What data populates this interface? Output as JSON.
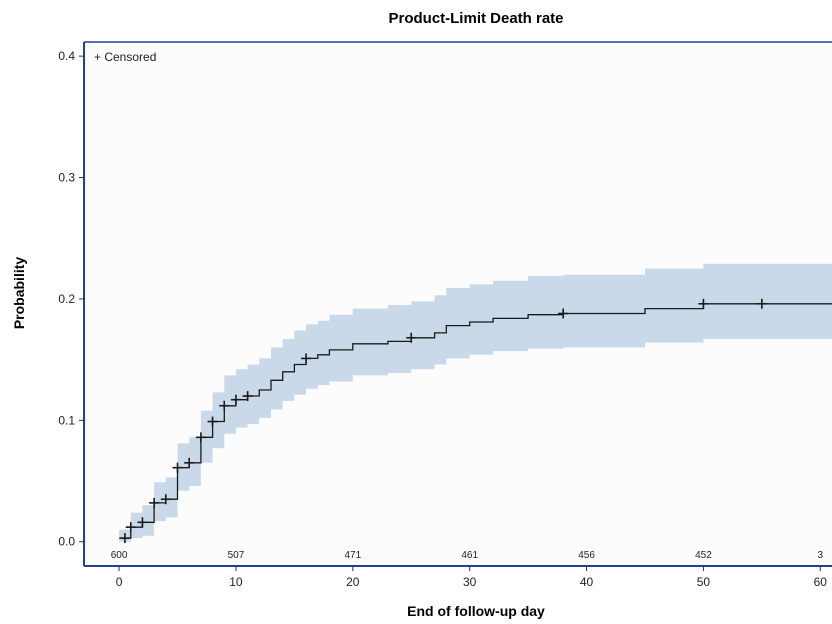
{
  "chart_data": {
    "type": "line",
    "title": "Product-Limit Death rate",
    "xlabel": "End of follow-up day",
    "ylabel": "Probability",
    "xlim": [
      -3,
      61
    ],
    "ylim": [
      -0.02,
      0.41
    ],
    "xticks": [
      0,
      10,
      20,
      30,
      40,
      50,
      60
    ],
    "xtick_labels": [
      "0",
      "10",
      "20",
      "30",
      "40",
      "50",
      "60"
    ],
    "yticks": [
      0.0,
      0.1,
      0.2,
      0.3,
      0.4
    ],
    "ytick_labels": [
      "0.0",
      "0.1",
      "0.2",
      "0.3",
      "0.4"
    ],
    "legend": {
      "label": "+ Censored",
      "placement": "top-left"
    },
    "grid": false,
    "colors": {
      "line": "#1a1a1a",
      "band": "#c9d9ea",
      "axis": "#1f3f99"
    },
    "series": [
      {
        "type": "step",
        "x": [
          0,
          1,
          2,
          3,
          4,
          5,
          6,
          7,
          8,
          9,
          10,
          11,
          12,
          13,
          14,
          15,
          16,
          17,
          18,
          20,
          23,
          25,
          27,
          28,
          30,
          32,
          35,
          38,
          45,
          50,
          61
        ],
        "y": [
          0.003,
          0.012,
          0.016,
          0.032,
          0.035,
          0.061,
          0.065,
          0.086,
          0.099,
          0.112,
          0.117,
          0.12,
          0.125,
          0.133,
          0.14,
          0.146,
          0.151,
          0.154,
          0.158,
          0.163,
          0.165,
          0.168,
          0.172,
          0.178,
          0.181,
          0.184,
          0.187,
          0.188,
          0.192,
          0.196,
          0.196
        ]
      },
      {
        "name": "Confidence band",
        "type": "band",
        "x": [
          0,
          1,
          2,
          3,
          4,
          5,
          6,
          7,
          8,
          9,
          10,
          11,
          12,
          13,
          14,
          15,
          16,
          17,
          18,
          20,
          23,
          25,
          27,
          28,
          30,
          32,
          35,
          38,
          45,
          50,
          61
        ],
        "lower": [
          0.0,
          0.003,
          0.005,
          0.017,
          0.02,
          0.042,
          0.046,
          0.065,
          0.077,
          0.089,
          0.094,
          0.097,
          0.102,
          0.109,
          0.116,
          0.121,
          0.126,
          0.129,
          0.132,
          0.137,
          0.139,
          0.142,
          0.146,
          0.151,
          0.154,
          0.157,
          0.159,
          0.16,
          0.164,
          0.167,
          0.167
        ],
        "upper": [
          0.01,
          0.024,
          0.03,
          0.049,
          0.053,
          0.081,
          0.086,
          0.108,
          0.123,
          0.137,
          0.142,
          0.146,
          0.151,
          0.16,
          0.167,
          0.174,
          0.179,
          0.182,
          0.187,
          0.192,
          0.195,
          0.198,
          0.203,
          0.209,
          0.212,
          0.215,
          0.219,
          0.22,
          0.225,
          0.229,
          0.229
        ]
      },
      {
        "name": "Censored",
        "type": "censor",
        "x": [
          0.5,
          1,
          2,
          3,
          4,
          5,
          6,
          7,
          8,
          9,
          10,
          11,
          16,
          25,
          38,
          50,
          55
        ],
        "y": [
          0.003,
          0.012,
          0.016,
          0.032,
          0.035,
          0.061,
          0.065,
          0.086,
          0.099,
          0.112,
          0.117,
          0.12,
          0.151,
          0.168,
          0.188,
          0.196,
          0.196
        ]
      }
    ],
    "at_risk": {
      "x": [
        0,
        10,
        20,
        30,
        40,
        50,
        60
      ],
      "labels": [
        "600",
        "507",
        "471",
        "461",
        "456",
        "452",
        "3"
      ]
    }
  }
}
